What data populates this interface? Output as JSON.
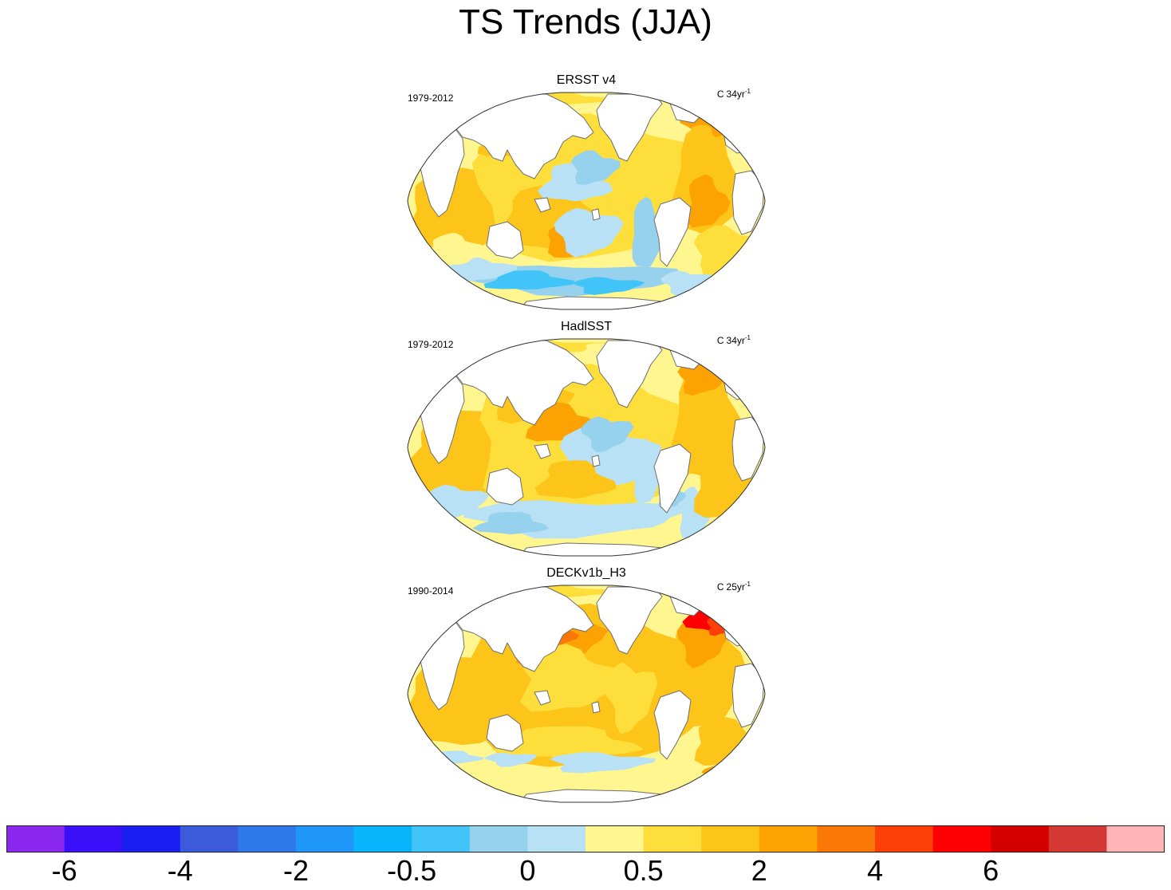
{
  "title": "TS Trends (JJA)",
  "panels": [
    {
      "title": "ERSST v4",
      "period": "1979-2012",
      "units_prefix": "C",
      "units": "34yr",
      "units_exp": "-1",
      "pattern": "ersst"
    },
    {
      "title": "HadlSST",
      "period": "1979-2012",
      "units_prefix": "C",
      "units": "34yr",
      "units_exp": "-1",
      "pattern": "hadisst"
    },
    {
      "title": "DECKv1b_H3",
      "period": "1990-2014",
      "units_prefix": "C",
      "units": "25yr",
      "units_exp": "-1",
      "pattern": "deck"
    }
  ],
  "colorbar": {
    "colors": [
      "#8A28F0",
      "#3A10F8",
      "#1A1EF0",
      "#3C5ADC",
      "#2E78EC",
      "#1E96FA",
      "#0AB4FA",
      "#41C4F8",
      "#96D1EE",
      "#B9E1F5",
      "#FFF68F",
      "#FEDE3A",
      "#FDC41A",
      "#FCA202",
      "#FC7806",
      "#FE3F08",
      "#FE0002",
      "#D40000",
      "#D33834",
      "#FFB5B5"
    ],
    "labels": [
      "-6",
      "-4",
      "-2",
      "-0.5",
      "0",
      "0.5",
      "2",
      "4",
      "6"
    ],
    "label_boundaries": [
      1,
      3,
      5,
      7,
      9,
      11,
      13,
      15,
      17
    ]
  },
  "chart_data": {
    "type": "heatmap",
    "title": "TS Trends (JJA)",
    "projection": "Robinson world map (Pacific-centered)",
    "colorbar_levels": [
      "-6",
      "-4",
      "-2",
      "-0.5",
      "0",
      "0.5",
      "2",
      "4",
      "6"
    ],
    "series": [
      {
        "name": "ERSST v4",
        "period": "1979-2012",
        "units": "C 34yr-1"
      },
      {
        "name": "HadlSST",
        "period": "1979-2012",
        "units": "C 34yr-1"
      },
      {
        "name": "DECKv1b_H3",
        "period": "1990-2014",
        "units": "C 25yr-1"
      }
    ]
  }
}
